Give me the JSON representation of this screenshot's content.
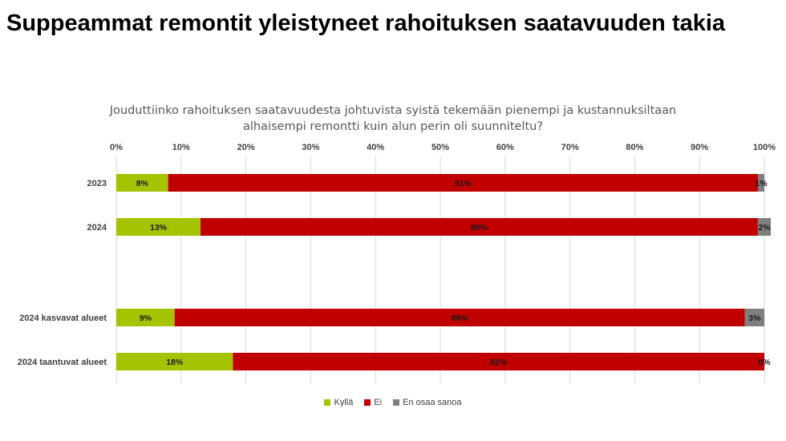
{
  "slide": {
    "title": "Suppeammat remontit yleistyneet rahoituksen saatavuuden takia"
  },
  "chart_data": {
    "type": "bar",
    "orientation": "horizontal",
    "stacked": true,
    "percent_stacked": true,
    "title": "Jouduttiinko rahoituksen saatavuudesta johtuvista syistä tekemään pienempi ja kustannuksiltaan alhaisempi remontti kuin alun perin oli suunniteltu?",
    "xlabel": "",
    "ylabel": "",
    "xlim": [
      0,
      100
    ],
    "x_ticks": [
      "0%",
      "10%",
      "20%",
      "30%",
      "40%",
      "50%",
      "60%",
      "70%",
      "80%",
      "90%",
      "100%"
    ],
    "categories": [
      "2023",
      "2024",
      "2024 kasvavat alueet",
      "2024 taantuvat alueet"
    ],
    "series": [
      {
        "name": "Kyllä",
        "color": "#a6c300",
        "values": [
          8,
          13,
          9,
          18
        ],
        "labels": [
          "8%",
          "13%",
          "9%",
          "18%"
        ]
      },
      {
        "name": "Ei",
        "color": "#c00000",
        "values": [
          91,
          86,
          88,
          82
        ],
        "labels": [
          "91%",
          "86%",
          "88%",
          "82%"
        ]
      },
      {
        "name": "En osaa sanoa",
        "color": "#7f7f7f",
        "values": [
          1,
          2,
          3,
          0
        ],
        "labels": [
          "1%",
          "2%",
          "3%",
          "0%"
        ]
      }
    ],
    "grid": true,
    "legend_position": "bottom"
  }
}
